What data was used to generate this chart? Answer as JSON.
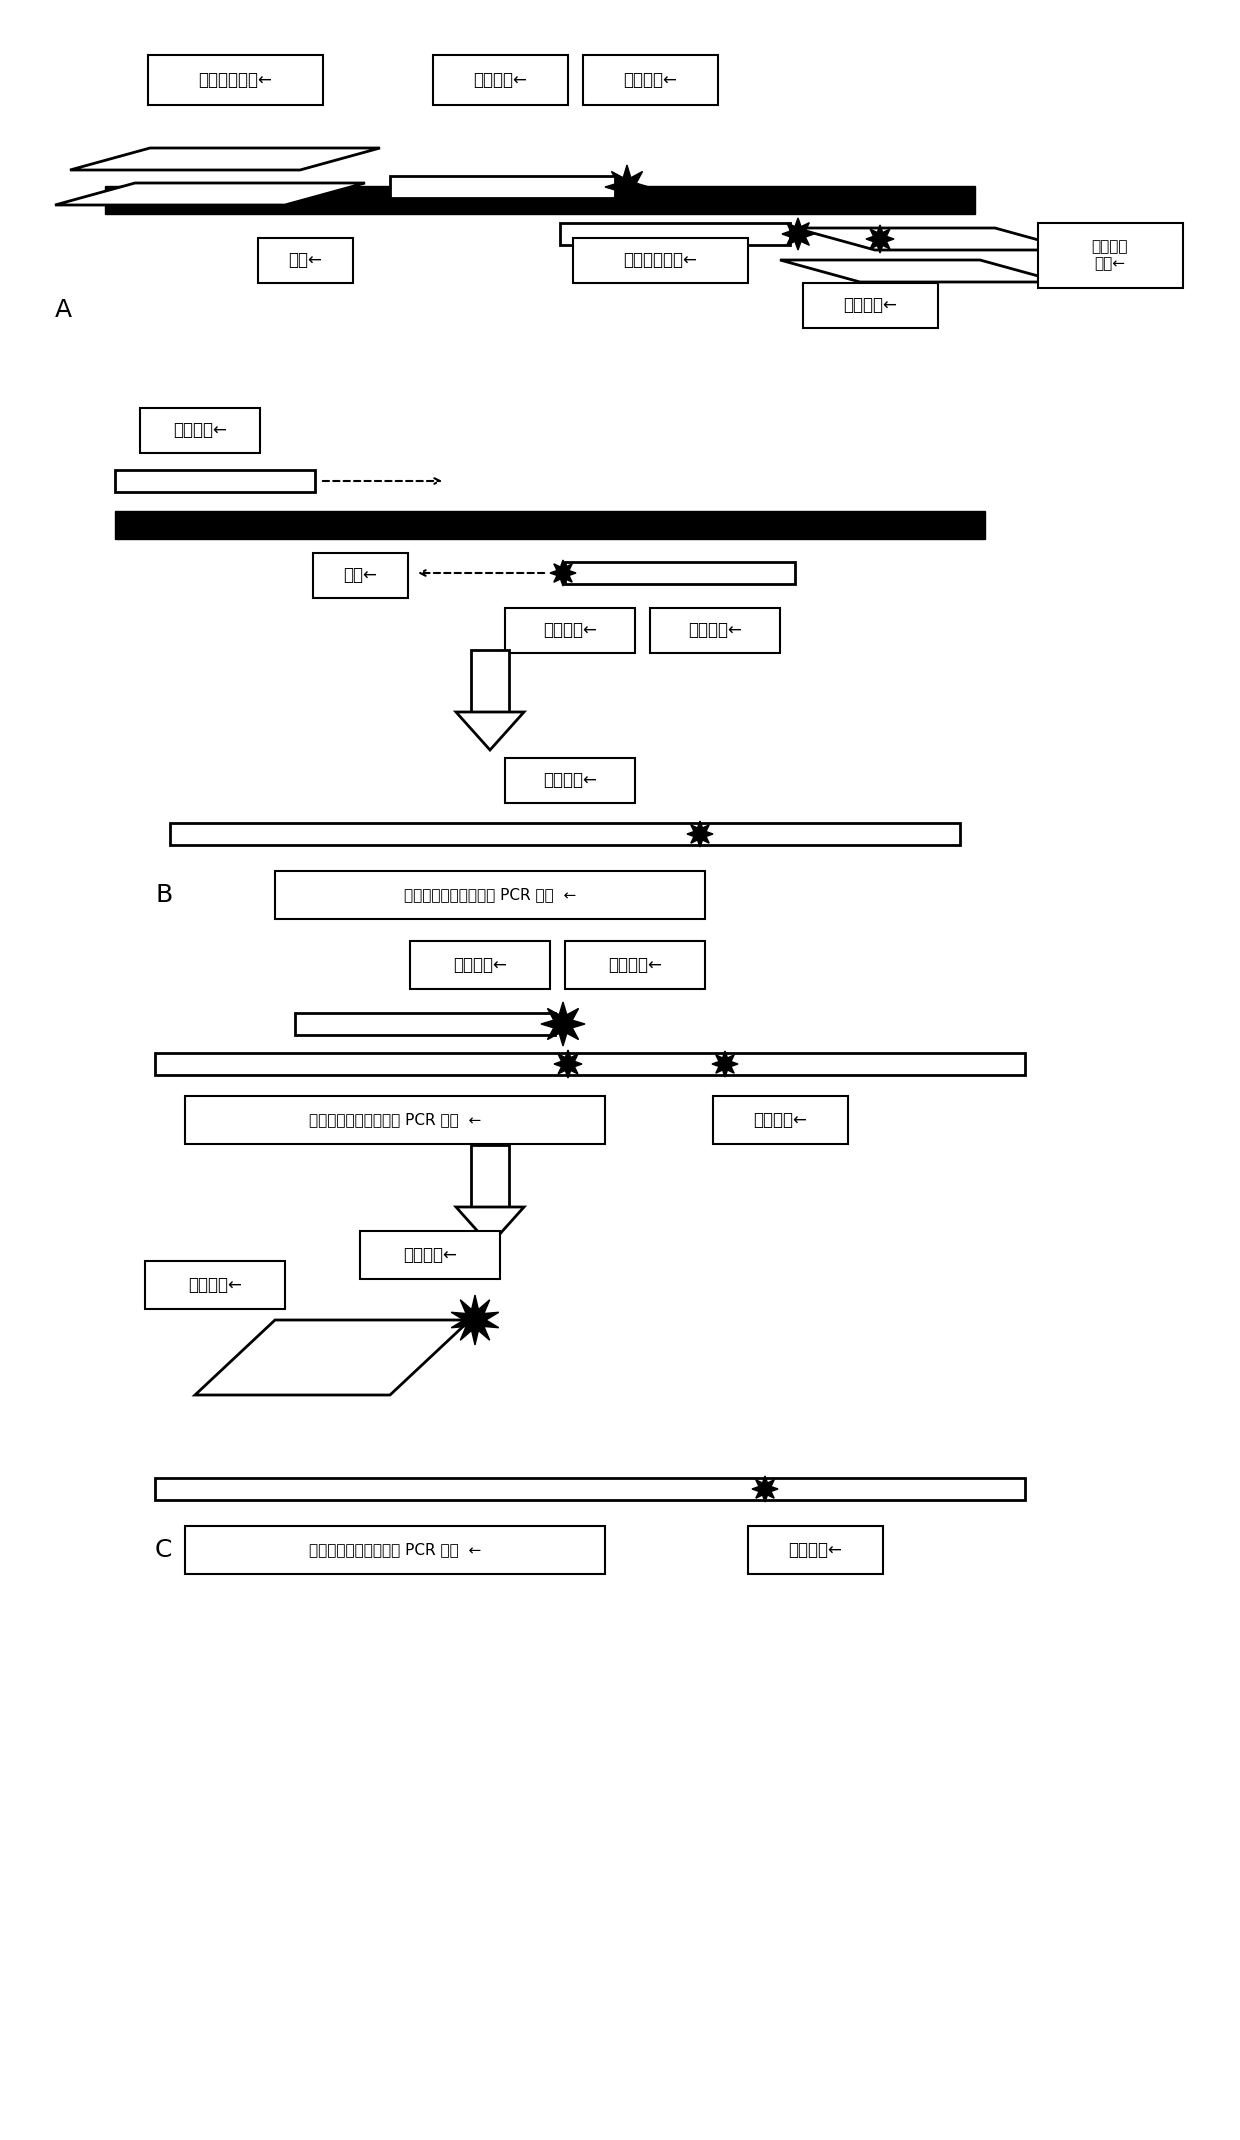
{
  "fig_width": 12.4,
  "fig_height": 21.4,
  "bg_color": "#ffffff",
  "labels": {
    "forward_enrichment_primer": "正向富集引物←",
    "fluorescent_probe": "荧光探针←",
    "fluorescent_group": "荧光基团←",
    "template": "模板←",
    "reverse_enrichment_primer": "反向富集引物←",
    "reverse_universal_primer": "反向通用\n引物←",
    "quencher_group": "淡灭基团←",
    "forward_primer": "正向引物←",
    "reverse_primer": "反向引物←",
    "single_chain_pcr": "反向引物延伸形成单链 PCR 产物  ←"
  }
}
